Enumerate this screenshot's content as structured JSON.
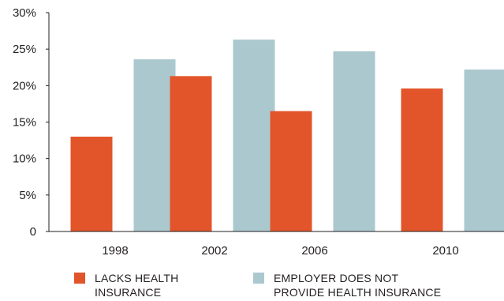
{
  "chart_data": {
    "type": "bar",
    "categories": [
      "1998",
      "2002",
      "2006",
      "2010"
    ],
    "series": [
      {
        "name": "LACKS  HEALTH\nINSURANCE",
        "color": "#e2552a",
        "values": [
          13.0,
          21.3,
          16.5,
          19.6
        ]
      },
      {
        "name": "EMPLOYER DOES NOT\nPROVIDE HEALTH INSURANCE",
        "color": "#abc8cf",
        "values": [
          23.6,
          26.3,
          24.7,
          22.2
        ]
      }
    ],
    "y_ticks": [
      "0",
      "5%",
      "10%",
      "15%",
      "20%",
      "25%",
      "30%"
    ],
    "ylim": [
      0,
      30
    ],
    "grid": false,
    "legend_position": "bottom"
  }
}
